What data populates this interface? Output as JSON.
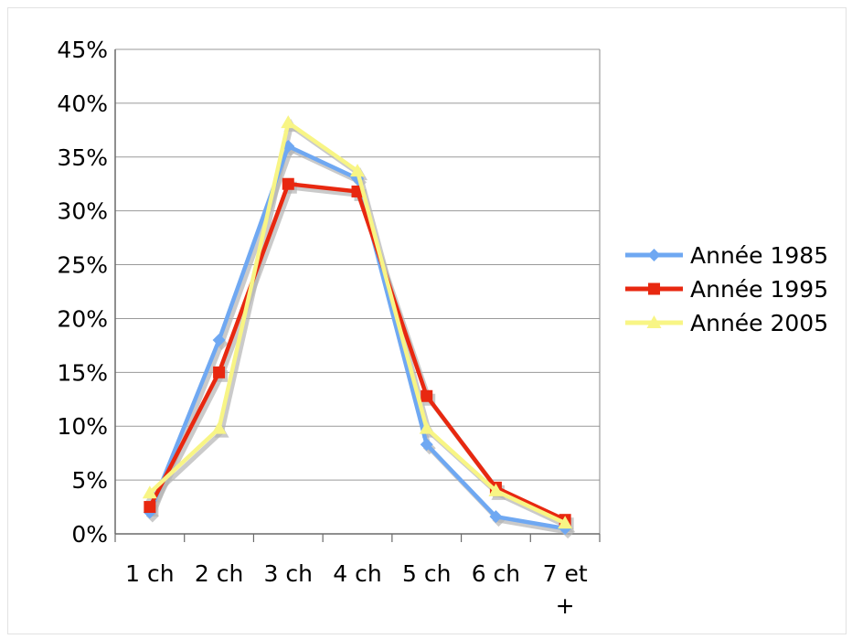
{
  "chart_data": {
    "type": "line",
    "title": "",
    "xlabel": "",
    "ylabel": "",
    "categories": [
      "1 ch",
      "2 ch",
      "3 ch",
      "4 ch",
      "5 ch",
      "6 ch",
      "7 et +"
    ],
    "category_lines": [
      [
        "1 ch"
      ],
      [
        "2 ch"
      ],
      [
        "3 ch"
      ],
      [
        "4 ch"
      ],
      [
        "5 ch"
      ],
      [
        "6 ch"
      ],
      [
        "7 et",
        "+"
      ]
    ],
    "y_ticks": [
      "0%",
      "5%",
      "10%",
      "15%",
      "20%",
      "25%",
      "30%",
      "35%",
      "40%",
      "45%"
    ],
    "ylim": [
      0,
      45
    ],
    "y_unit": "%",
    "grid": true,
    "legend_position": "right",
    "series": [
      {
        "name": "Année 1985",
        "marker": "diamond",
        "color": "#6FA8F2",
        "values": [
          2,
          18,
          36,
          33,
          8.3,
          1.6,
          0.5
        ]
      },
      {
        "name": "Année 1995",
        "marker": "square",
        "color": "#E82810",
        "values": [
          2.5,
          15,
          32.5,
          31.8,
          12.8,
          4.3,
          1.3
        ]
      },
      {
        "name": "Année 2005",
        "marker": "triangle",
        "color": "#F8F585",
        "values": [
          3.8,
          9.8,
          38.2,
          33.7,
          9.8,
          4,
          1
        ]
      }
    ]
  }
}
